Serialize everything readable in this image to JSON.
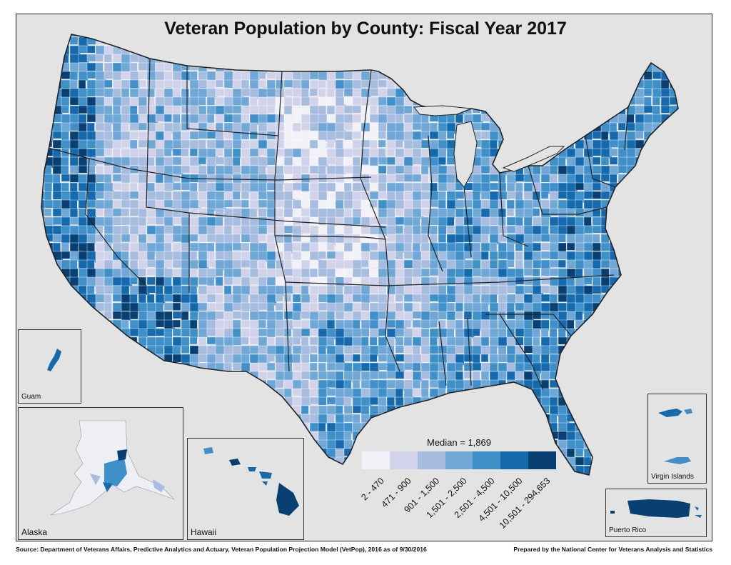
{
  "title": "Veteran Population by County: Fiscal Year 2017",
  "median_label": "Median = 1,869",
  "legend": {
    "bins": [
      {
        "label": "2 - 470",
        "color": "#f1f1f7"
      },
      {
        "label": "471 - 900",
        "color": "#d0d3ea"
      },
      {
        "label": "901 - 1,500",
        "color": "#a7bde0"
      },
      {
        "label": "1,501 - 2,500",
        "color": "#6fa7d6"
      },
      {
        "label": "2,501 - 4,500",
        "color": "#3f8fc9"
      },
      {
        "label": "4,501 - 10,500",
        "color": "#1569ad"
      },
      {
        "label": "10,501 - 294,653",
        "color": "#084073"
      }
    ]
  },
  "insets": {
    "guam": "Guam",
    "alaska": "Alaska",
    "hawaii": "Hawaii",
    "virgin_islands": "Virgin Islands",
    "puerto_rico": "Puerto Rico"
  },
  "footer": {
    "source": "Source: Department of Veterans Affairs, Predictive Analytics and Actuary, Veteran Population Projection Model (VetPop), 2016 as of 9/30/2016",
    "prepared_by": "Prepared by the National Center for Veterans Analysis and Statistics"
  }
}
